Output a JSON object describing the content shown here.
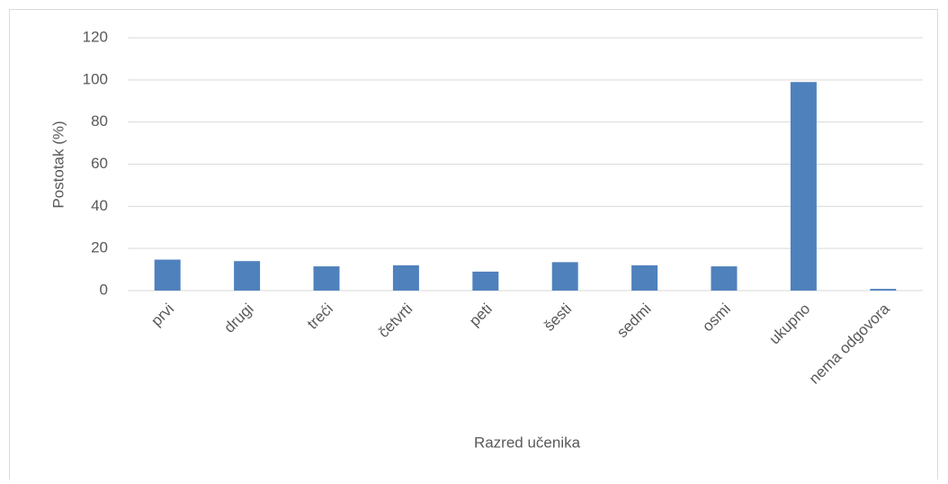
{
  "chart_data": {
    "type": "bar",
    "categories": [
      "prvi",
      "drugi",
      "treći",
      "četvrti",
      "peti",
      "šesti",
      "sedmi",
      "osmi",
      "ukupno",
      "nema odgovora"
    ],
    "values": [
      14.7,
      14,
      11.5,
      12,
      9,
      13.5,
      12,
      11.5,
      99,
      0.8
    ],
    "color": "#4f81bd",
    "ylim": [
      0,
      120
    ],
    "yticks": [
      0,
      20,
      40,
      60,
      80,
      100,
      120
    ],
    "grid": true,
    "y_label": "Postotak (%)",
    "x_label": "Razred učenika"
  }
}
